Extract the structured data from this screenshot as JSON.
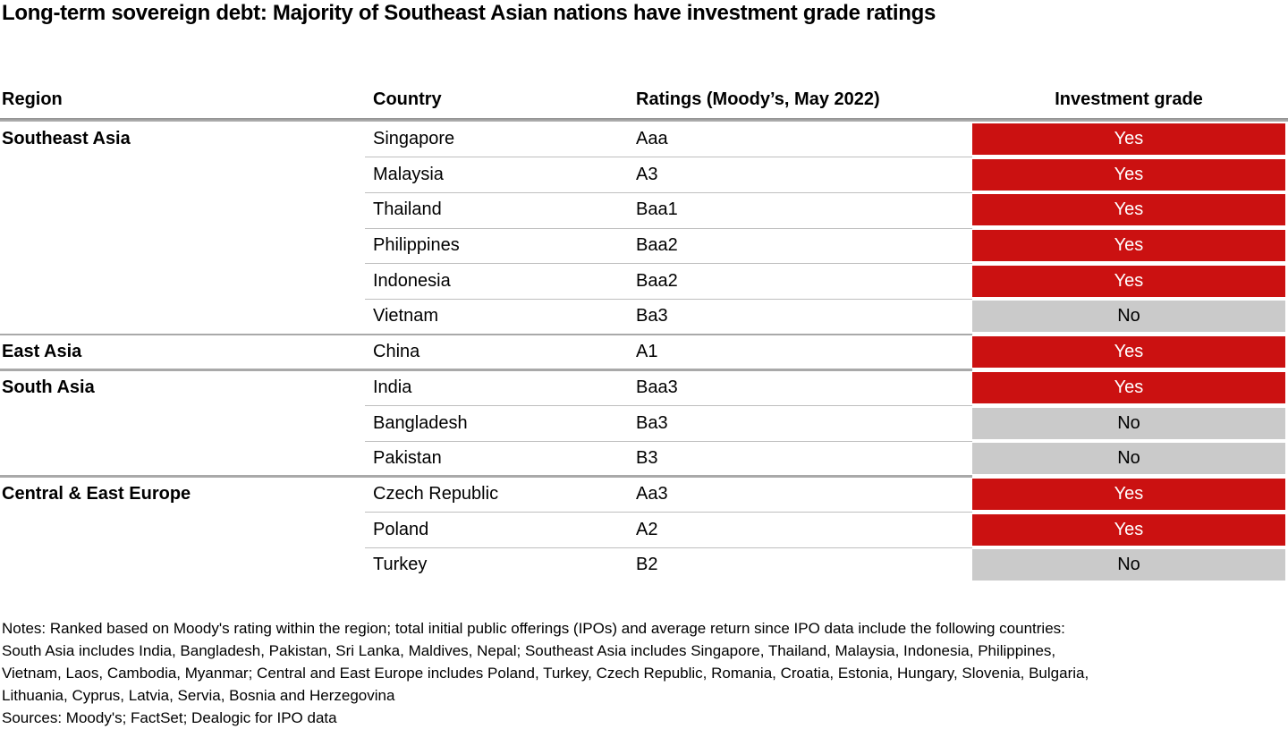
{
  "title": "Long-term sovereign debt: Majority of Southeast Asian nations have investment grade ratings",
  "colors": {
    "yes_bg": "#cb1111",
    "yes_text": "#ffffff",
    "no_bg": "#cacaca",
    "no_text": "#000000"
  },
  "chart_data": {
    "type": "table",
    "title": "Long-term sovereign debt: Majority of Southeast Asian nations have investment grade ratings",
    "columns": [
      "Region",
      "Country",
      "Ratings (Moody’s, May 2022)",
      "Investment grade"
    ],
    "groups": [
      {
        "region": "Southeast Asia",
        "rows": [
          {
            "country": "Singapore",
            "rating": "Aaa",
            "investment_grade": "Yes"
          },
          {
            "country": "Malaysia",
            "rating": "A3",
            "investment_grade": "Yes"
          },
          {
            "country": "Thailand",
            "rating": "Baa1",
            "investment_grade": "Yes"
          },
          {
            "country": "Philippines",
            "rating": "Baa2",
            "investment_grade": "Yes"
          },
          {
            "country": "Indonesia",
            "rating": "Baa2",
            "investment_grade": "Yes"
          },
          {
            "country": "Vietnam",
            "rating": "Ba3",
            "investment_grade": "No"
          }
        ]
      },
      {
        "region": "East Asia",
        "rows": [
          {
            "country": "China",
            "rating": "A1",
            "investment_grade": "Yes"
          }
        ]
      },
      {
        "region": "South Asia",
        "rows": [
          {
            "country": "India",
            "rating": "Baa3",
            "investment_grade": "Yes"
          },
          {
            "country": "Bangladesh",
            "rating": "Ba3",
            "investment_grade": "No"
          },
          {
            "country": "Pakistan",
            "rating": "B3",
            "investment_grade": "No"
          }
        ]
      },
      {
        "region": "Central & East Europe",
        "rows": [
          {
            "country": "Czech Republic",
            "rating": "Aa3",
            "investment_grade": "Yes"
          },
          {
            "country": "Poland",
            "rating": "A2",
            "investment_grade": "Yes"
          },
          {
            "country": "Turkey",
            "rating": "B2",
            "investment_grade": "No"
          }
        ]
      }
    ],
    "notes_lines": [
      "Notes: Ranked based on Moody's rating within the region; total initial public offerings (IPOs) and average return since IPO data include the following countries:",
      "South Asia includes India, Bangladesh, Pakistan, Sri Lanka, Maldives, Nepal; Southeast Asia includes Singapore, Thailand, Malaysia, Indonesia, Philippines,",
      "Vietnam, Laos, Cambodia, Myanmar; Central and East Europe includes Poland, Turkey, Czech Republic, Romania, Croatia, Estonia, Hungary, Slovenia, Bulgaria,",
      "Lithuania, Cyprus, Latvia, Servia, Bosnia and Herzegovina"
    ],
    "sources": "Sources: Moody's; FactSet; Dealogic for IPO data"
  }
}
